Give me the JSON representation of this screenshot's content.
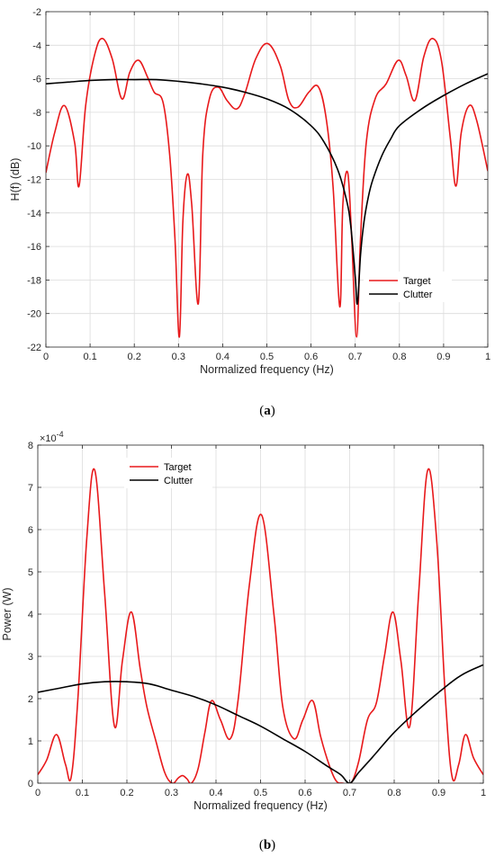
{
  "chart_data": [
    {
      "type": "line",
      "panel_label": "a",
      "xlabel": "Normalized frequency (Hz)",
      "ylabel": "H(f) (dB)",
      "xlim": [
        0,
        1
      ],
      "ylim": [
        -22,
        -2
      ],
      "xticks": [
        0,
        0.1,
        0.2,
        0.3,
        0.4,
        0.5,
        0.6,
        0.7,
        0.8,
        0.9,
        1
      ],
      "xtick_labels": [
        "0",
        "0.1",
        "0.2",
        "0.3",
        "0.4",
        "0.5",
        "0.6",
        "0.7",
        "0.8",
        "0.9",
        "1"
      ],
      "yticks": [
        -22,
        -20,
        -18,
        -16,
        -14,
        -12,
        -10,
        -8,
        -6,
        -4,
        -2
      ],
      "ytick_labels": [
        "-22",
        "-20",
        "-18",
        "-16",
        "-14",
        "-12",
        "-10",
        "-8",
        "-6",
        "-4",
        "-2"
      ],
      "grid": true,
      "legend_position": "bottom-right",
      "series": [
        {
          "name": "Target",
          "color": "#e8191b",
          "x": [
            0,
            0.02,
            0.042,
            0.065,
            0.075,
            0.09,
            0.11,
            0.128,
            0.15,
            0.172,
            0.19,
            0.21,
            0.23,
            0.245,
            0.265,
            0.28,
            0.292,
            0.302,
            0.31,
            0.32,
            0.33,
            0.345,
            0.355,
            0.37,
            0.39,
            0.41,
            0.432,
            0.45,
            0.475,
            0.502,
            0.53,
            0.55,
            0.57,
            0.595,
            0.617,
            0.635,
            0.65,
            0.665,
            0.672,
            0.683,
            0.692,
            0.703,
            0.712,
            0.725,
            0.745,
            0.77,
            0.797,
            0.815,
            0.835,
            0.855,
            0.875,
            0.895,
            0.915,
            0.928,
            0.94,
            0.958,
            0.975,
            1
          ],
          "y": [
            -11.6,
            -9.2,
            -7.6,
            -9.8,
            -12.4,
            -7.6,
            -4.6,
            -3.6,
            -4.8,
            -7.2,
            -5.6,
            -4.9,
            -5.9,
            -6.8,
            -7.4,
            -10.5,
            -15.5,
            -21.4,
            -14.5,
            -11.7,
            -13.5,
            -19.4,
            -10.5,
            -7.2,
            -6.5,
            -7.3,
            -7.8,
            -6.9,
            -4.8,
            -3.9,
            -5.2,
            -7.3,
            -7.7,
            -6.8,
            -6.5,
            -8.5,
            -12.5,
            -19.6,
            -13.5,
            -11.6,
            -15.5,
            -21.4,
            -15.5,
            -9.8,
            -7.2,
            -6.3,
            -4.9,
            -5.8,
            -7.3,
            -4.7,
            -3.6,
            -4.9,
            -9.5,
            -12.4,
            -9.2,
            -7.6,
            -8.5,
            -11.5
          ]
        },
        {
          "name": "Clutter",
          "color": "#000000",
          "x": [
            0,
            0.05,
            0.1,
            0.15,
            0.2,
            0.25,
            0.3,
            0.35,
            0.4,
            0.45,
            0.5,
            0.55,
            0.6,
            0.63,
            0.66,
            0.68,
            0.69,
            0.7,
            0.705,
            0.712,
            0.72,
            0.73,
            0.74,
            0.76,
            0.78,
            0.8,
            0.85,
            0.9,
            0.95,
            1
          ],
          "y": [
            -6.3,
            -6.2,
            -6.1,
            -6.05,
            -6.05,
            -6.05,
            -6.15,
            -6.3,
            -6.5,
            -6.8,
            -7.2,
            -7.8,
            -8.8,
            -9.8,
            -11.4,
            -13.2,
            -14.8,
            -17.8,
            -19.4,
            -16.5,
            -14.5,
            -13.0,
            -12.0,
            -10.6,
            -9.6,
            -8.8,
            -7.8,
            -7.0,
            -6.3,
            -5.7
          ]
        }
      ]
    },
    {
      "type": "line",
      "panel_label": "b",
      "xlabel": "Normalized frequency (Hz)",
      "ylabel": "Power (W)",
      "y_multiplier": "×10",
      "y_exponent": "-4",
      "xlim": [
        0,
        1
      ],
      "ylim": [
        0,
        8
      ],
      "xticks": [
        0,
        0.1,
        0.2,
        0.3,
        0.4,
        0.5,
        0.6,
        0.7,
        0.8,
        0.9,
        1
      ],
      "xtick_labels": [
        "0",
        "0.1",
        "0.2",
        "0.3",
        "0.4",
        "0.5",
        "0.6",
        "0.7",
        "0.8",
        "0.9",
        "1"
      ],
      "yticks": [
        0,
        1,
        2,
        3,
        4,
        5,
        6,
        7,
        8
      ],
      "ytick_labels": [
        "0",
        "1",
        "2",
        "3",
        "4",
        "5",
        "6",
        "7",
        "8"
      ],
      "grid": true,
      "legend_position": "top-left",
      "series": [
        {
          "name": "Target",
          "color": "#e8191b",
          "x": [
            0,
            0.02,
            0.042,
            0.062,
            0.075,
            0.09,
            0.11,
            0.128,
            0.15,
            0.172,
            0.19,
            0.21,
            0.23,
            0.245,
            0.265,
            0.285,
            0.302,
            0.315,
            0.325,
            0.335,
            0.345,
            0.36,
            0.375,
            0.39,
            0.41,
            0.432,
            0.45,
            0.475,
            0.502,
            0.53,
            0.55,
            0.575,
            0.595,
            0.617,
            0.635,
            0.655,
            0.67,
            0.685,
            0.703,
            0.72,
            0.74,
            0.76,
            0.778,
            0.797,
            0.815,
            0.835,
            0.855,
            0.875,
            0.895,
            0.915,
            0.93,
            0.945,
            0.96,
            0.978,
            1
          ],
          "y": [
            0.2,
            0.55,
            1.15,
            0.45,
            0.15,
            2.0,
            5.8,
            7.4,
            4.5,
            1.35,
            2.9,
            4.05,
            2.7,
            1.8,
            1.0,
            0.25,
            0.0,
            0.12,
            0.18,
            0.1,
            0.0,
            0.35,
            1.2,
            1.95,
            1.5,
            1.05,
            2.0,
            4.7,
            6.35,
            4.0,
            1.8,
            1.05,
            1.5,
            1.95,
            1.1,
            0.4,
            0.05,
            0.0,
            0.0,
            0.5,
            1.5,
            1.9,
            3.0,
            4.05,
            2.9,
            1.35,
            4.5,
            7.4,
            5.8,
            2.0,
            0.15,
            0.45,
            1.15,
            0.6,
            0.2
          ]
        },
        {
          "name": "Clutter",
          "color": "#000000",
          "x": [
            0,
            0.05,
            0.1,
            0.15,
            0.2,
            0.25,
            0.3,
            0.35,
            0.4,
            0.45,
            0.5,
            0.55,
            0.6,
            0.65,
            0.68,
            0.7,
            0.72,
            0.75,
            0.8,
            0.85,
            0.9,
            0.95,
            1
          ],
          "y": [
            2.15,
            2.25,
            2.35,
            2.4,
            2.4,
            2.35,
            2.2,
            2.05,
            1.85,
            1.6,
            1.35,
            1.05,
            0.75,
            0.4,
            0.2,
            0.0,
            0.25,
            0.6,
            1.2,
            1.7,
            2.15,
            2.55,
            2.8
          ]
        }
      ]
    }
  ]
}
